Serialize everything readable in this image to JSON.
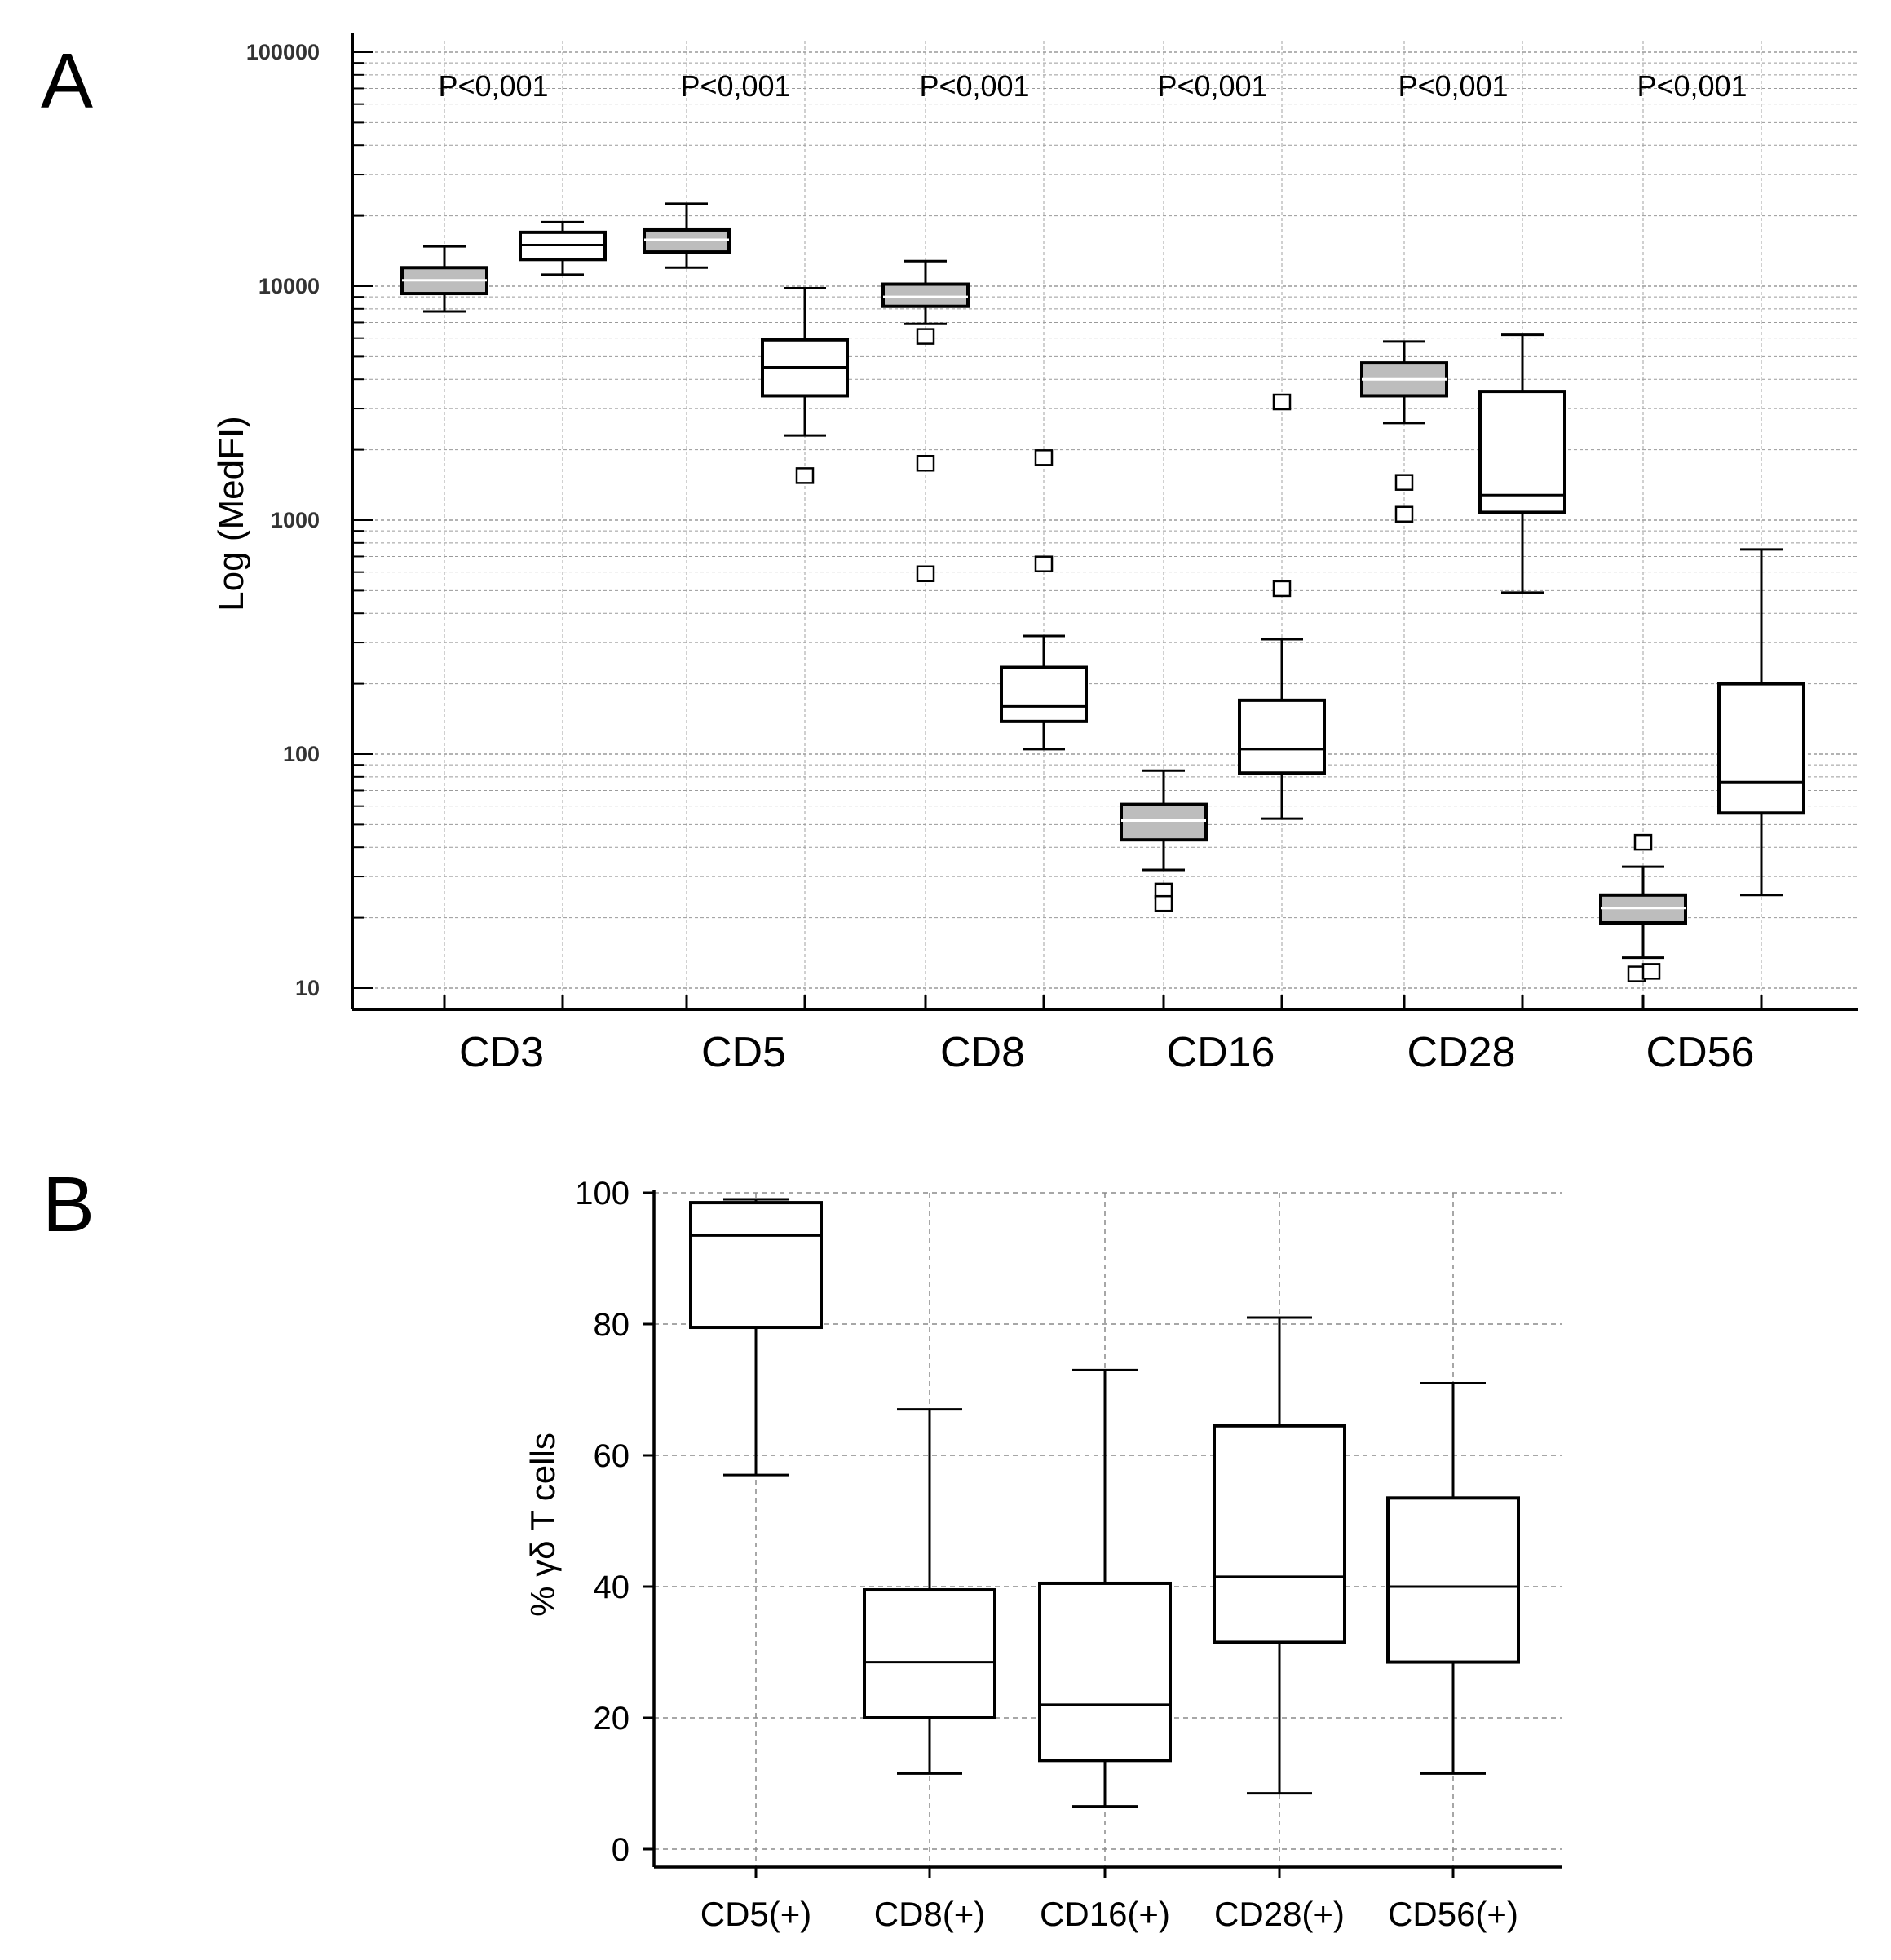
{
  "panel_labels": {
    "a": "A",
    "b": "B"
  },
  "chart_data": [
    {
      "type": "box",
      "panel": "A",
      "scale": "log",
      "ylabel": "Log (MedFI)",
      "xlabel": "",
      "ylim": [
        8,
        120000
      ],
      "yticks": [
        10,
        100,
        1000,
        10000,
        100000
      ],
      "ytick_labels": [
        "10",
        "100",
        "1000",
        "10000",
        "100000"
      ],
      "grid": true,
      "categories": [
        "CD3",
        "CD5",
        "CD8",
        "CD16",
        "CD28",
        "CD56"
      ],
      "annotations": [
        "P<0,001",
        "P<0,001",
        "P<0,001",
        "P<0,001",
        "P<0,001",
        "P<0,001"
      ],
      "series": [
        {
          "name": "gray",
          "fill": "#bdbdbd",
          "boxes": [
            {
              "min": 7800,
              "q1": 9300,
              "median": 10600,
              "q3": 12000,
              "max": 14800,
              "outliers": []
            },
            {
              "min": 12000,
              "q1": 14000,
              "median": 15800,
              "q3": 17400,
              "max": 22500,
              "outliers": []
            },
            {
              "min": 6900,
              "q1": 8200,
              "median": 9000,
              "q3": 10200,
              "max": 12800,
              "outliers": [
                6100,
                1750,
                590
              ]
            },
            {
              "min": 32,
              "q1": 43,
              "median": 52,
              "q3": 61,
              "max": 85,
              "outliers": [
                26,
                23
              ]
            },
            {
              "min": 2600,
              "q1": 3400,
              "median": 4000,
              "q3": 4700,
              "max": 5800,
              "outliers": [
                1450,
                1060
              ]
            },
            {
              "min": 13.5,
              "q1": 19,
              "median": 22,
              "q3": 25,
              "max": 33,
              "outliers": [
                42,
                11.5,
                11.8
              ]
            }
          ]
        },
        {
          "name": "white",
          "fill": "#ffffff",
          "boxes": [
            {
              "min": 11200,
              "q1": 13000,
              "median": 15000,
              "q3": 17000,
              "max": 18800,
              "outliers": []
            },
            {
              "min": 2300,
              "q1": 3400,
              "median": 4500,
              "q3": 5900,
              "max": 9800,
              "outliers": [
                1550
              ]
            },
            {
              "min": 105,
              "q1": 138,
              "median": 160,
              "q3": 235,
              "max": 320,
              "outliers": [
                1850,
                650
              ]
            },
            {
              "min": 53,
              "q1": 83,
              "median": 105,
              "q3": 170,
              "max": 310,
              "outliers": [
                3200,
                510
              ]
            },
            {
              "min": 490,
              "q1": 1080,
              "median": 1280,
              "q3": 3550,
              "max": 6200,
              "outliers": []
            },
            {
              "min": 25,
              "q1": 56,
              "median": 76,
              "q3": 200,
              "max": 750,
              "outliers": []
            }
          ]
        }
      ]
    },
    {
      "type": "box",
      "panel": "B",
      "scale": "linear",
      "ylabel": "% γδ T cells",
      "xlabel": "",
      "ylim": [
        0,
        100
      ],
      "yticks": [
        0,
        20,
        40,
        60,
        80,
        100
      ],
      "ytick_labels": [
        "0",
        "20",
        "40",
        "60",
        "80",
        "100"
      ],
      "grid": true,
      "categories": [
        "CD5(+)",
        "CD8(+)",
        "CD16(+)",
        "CD28(+)",
        "CD56(+)"
      ],
      "boxes": [
        {
          "min": 57,
          "q1": 79.5,
          "median": 93.5,
          "q3": 98.5,
          "max": 99
        },
        {
          "min": 11.5,
          "q1": 20,
          "median": 28.5,
          "q3": 39.5,
          "max": 67
        },
        {
          "min": 6.5,
          "q1": 13.5,
          "median": 22,
          "q3": 40.5,
          "max": 73
        },
        {
          "min": 8.5,
          "q1": 31.5,
          "median": 41.5,
          "q3": 64.5,
          "max": 81
        },
        {
          "min": 11.5,
          "q1": 28.5,
          "median": 40,
          "q3": 53.5,
          "max": 71
        }
      ]
    }
  ]
}
